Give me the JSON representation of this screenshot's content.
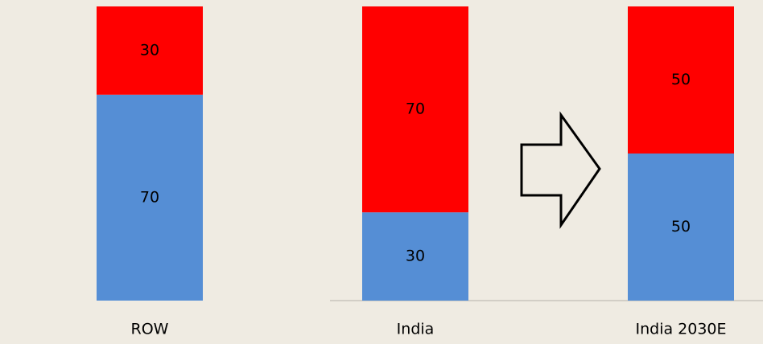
{
  "chart_data": {
    "type": "stacked_bar",
    "categories": [
      "ROW",
      "India",
      "India 2030E"
    ],
    "series": [
      {
        "color": "#558ed5",
        "values": [
          70,
          30,
          50
        ]
      },
      {
        "color": "#ff0000",
        "values": [
          30,
          70,
          50
        ]
      }
    ],
    "ylim": [
      0,
      100
    ]
  }
}
